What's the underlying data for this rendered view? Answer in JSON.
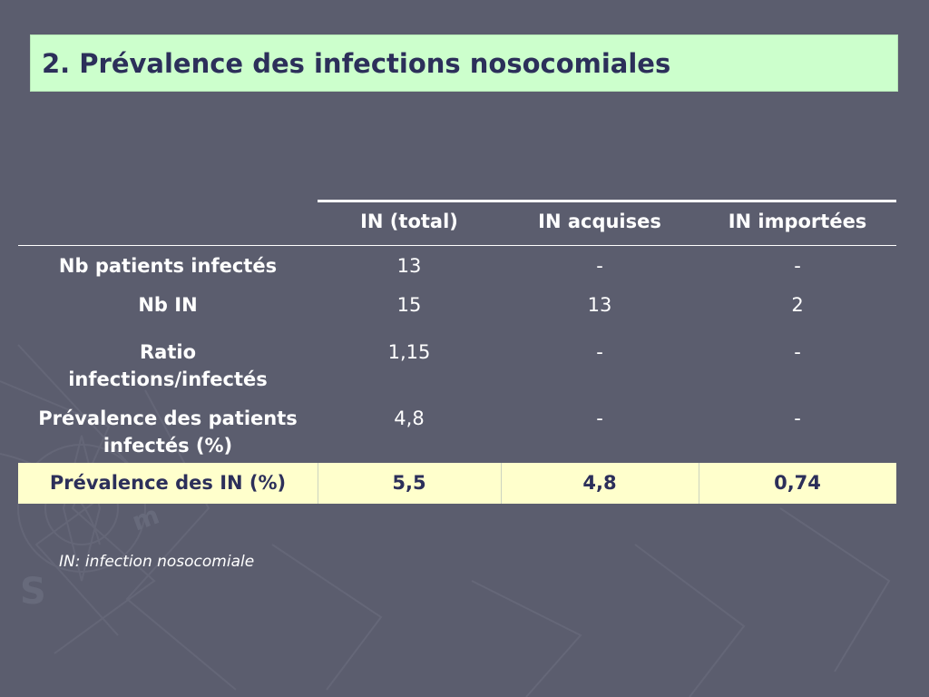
{
  "slide": {
    "title": "2. Prévalence des infections nosocomiales",
    "background_color": "#5b5d6e",
    "title_box_color": "#ccffcc",
    "title_text_color": "#2c2f5a",
    "highlight_row_color": "#ffffcc"
  },
  "table": {
    "headers": [
      "",
      "IN (total)",
      "IN acquises",
      "IN importées"
    ],
    "rows": [
      {
        "label": "Nb patients infectés",
        "values": [
          "13",
          "-",
          "-"
        ]
      },
      {
        "label": "Nb IN",
        "values": [
          "15",
          "13",
          "2"
        ]
      },
      {
        "label_line1": "Ratio",
        "label_line2": "infections/infectés",
        "values": [
          "1,15",
          "-",
          "-"
        ]
      },
      {
        "label_line1": "Prévalence des patients",
        "label_line2": "infectés (%)",
        "values": [
          "4,8",
          "-",
          "-"
        ]
      }
    ],
    "highlight_row": {
      "label": "Prévalence des IN (%)",
      "values": [
        "5,5",
        "4,8",
        "0,74"
      ]
    }
  },
  "footnote": "IN: infection nosocomiale"
}
